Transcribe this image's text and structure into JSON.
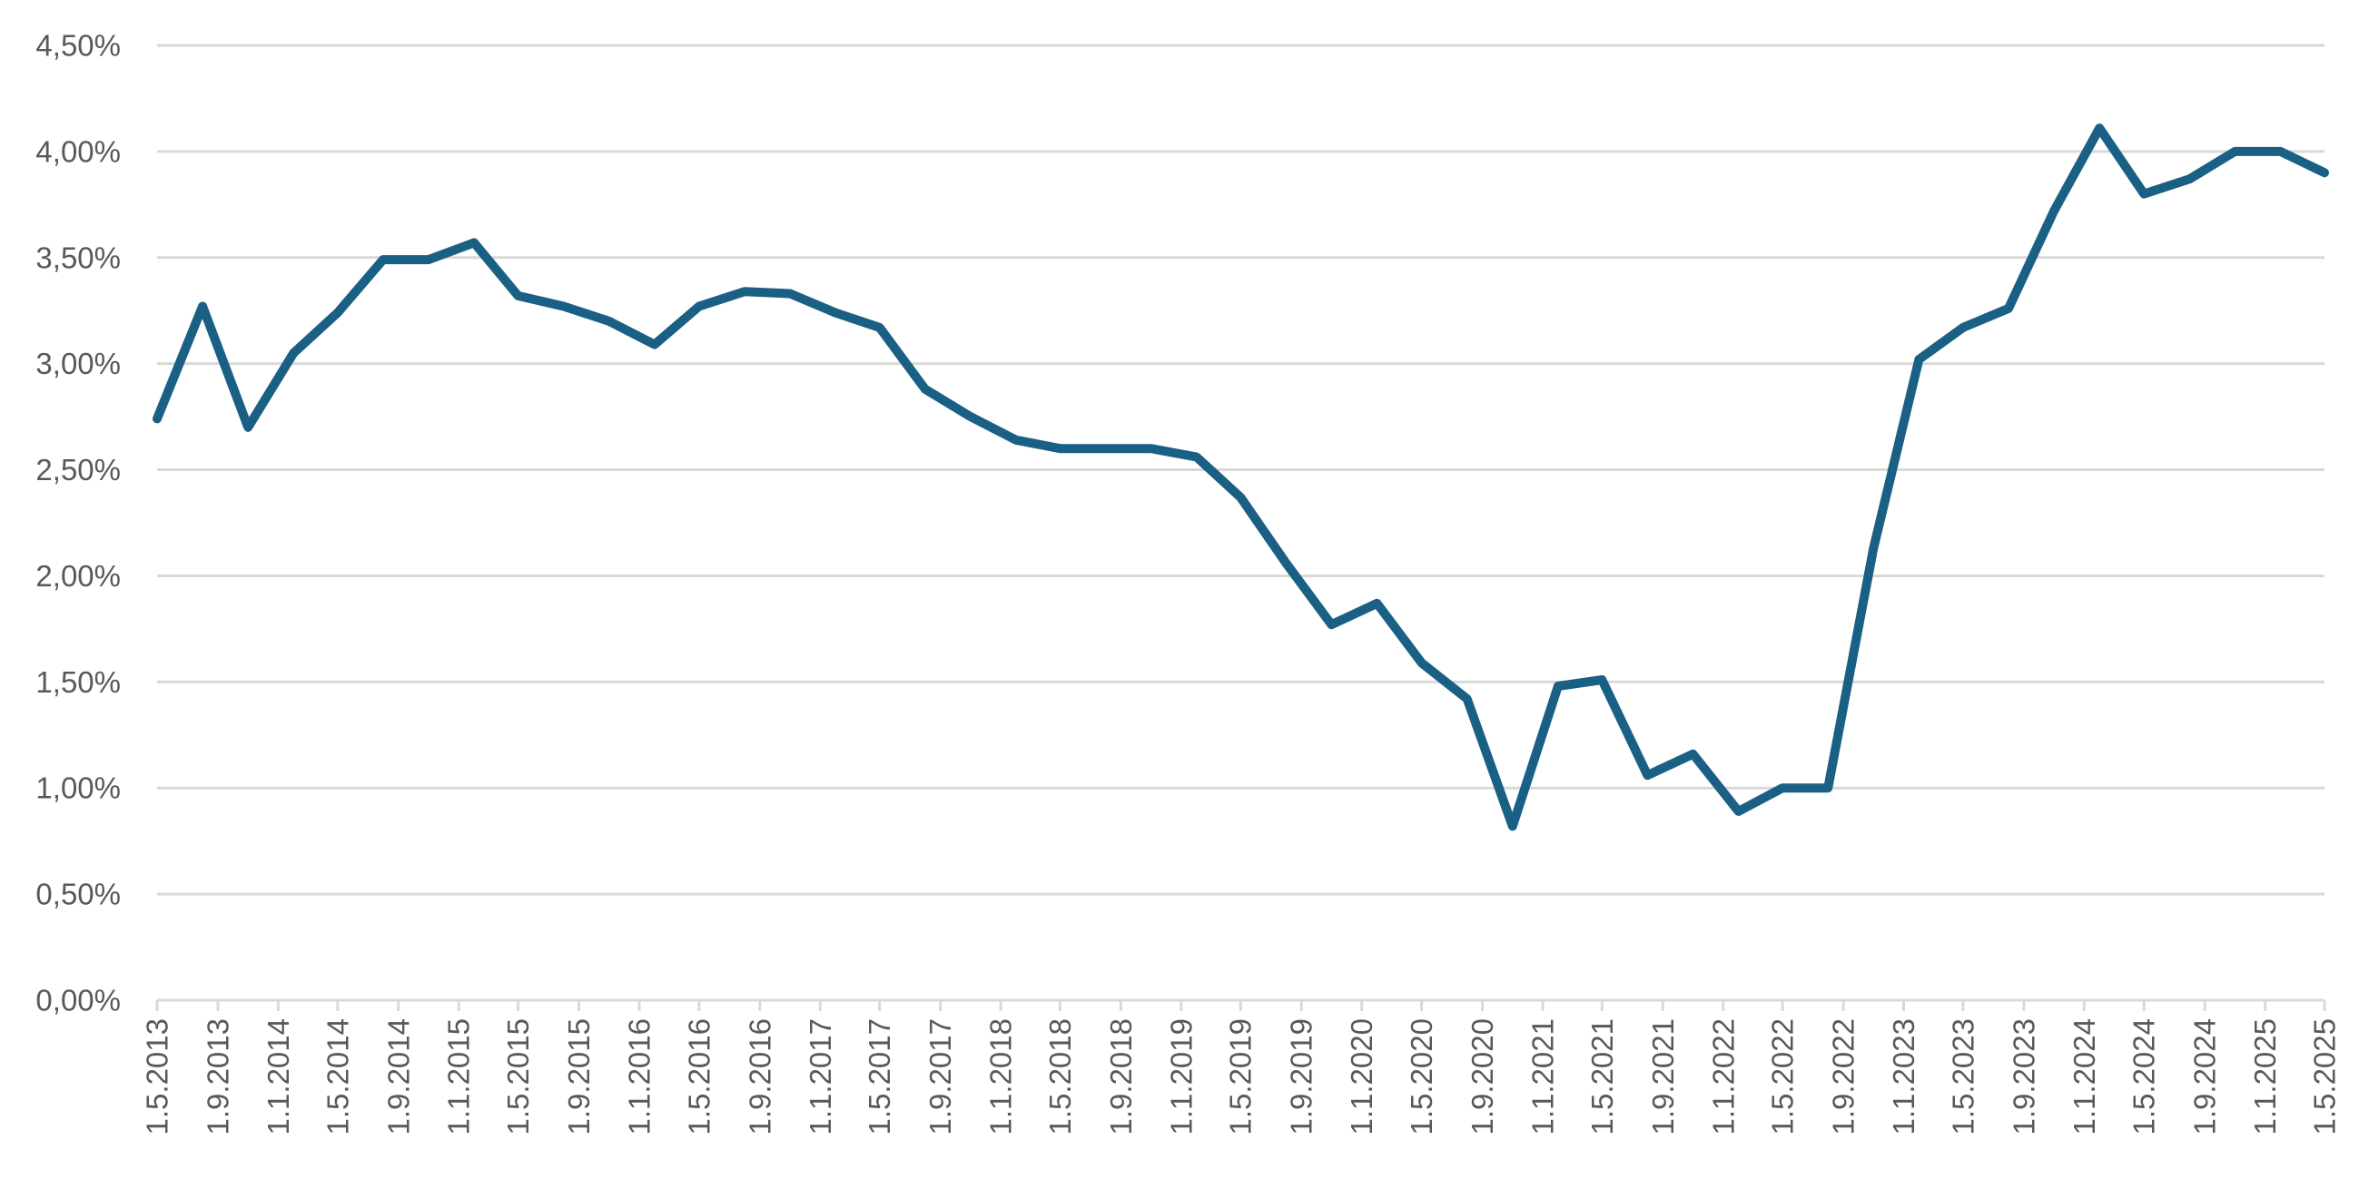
{
  "chart_data": {
    "type": "line",
    "title": "",
    "xlabel": "",
    "ylabel": "",
    "ylim": [
      0,
      4.5
    ],
    "y_ticks": [
      "0,00%",
      "0,50%",
      "1,00%",
      "1,50%",
      "2,00%",
      "2,50%",
      "3,00%",
      "3,50%",
      "4,00%",
      "4,50%"
    ],
    "x_ticks": [
      "1.5.2013",
      "1.9.2013",
      "1.1.2014",
      "1.5.2014",
      "1.9.2014",
      "1.1.2015",
      "1.5.2015",
      "1.9.2015",
      "1.1.2016",
      "1.5.2016",
      "1.9.2016",
      "1.1.2017",
      "1.5.2017",
      "1.9.2017",
      "1.1.2018",
      "1.5.2018",
      "1.9.2018",
      "1.1.2019",
      "1.5.2019",
      "1.9.2019",
      "1.1.2020",
      "1.5.2020",
      "1.9.2020",
      "1.1.2021",
      "1.5.2021",
      "1.9.2021",
      "1.1.2022",
      "1.5.2022",
      "1.9.2022",
      "1.1.2023",
      "1.5.2023",
      "1.9.2023",
      "1.1.2024",
      "1.5.2024",
      "1.9.2024",
      "1.1.2025",
      "1.5.2025"
    ],
    "grid": true,
    "legend": "none",
    "series_color": "#1a6085",
    "series": [
      {
        "x": [
          "2013-05-01",
          "2013-08-01",
          "2013-11-01",
          "2014-02-01",
          "2014-05-01",
          "2014-08-01",
          "2014-11-01",
          "2015-02-01",
          "2015-05-01",
          "2015-08-01",
          "2015-11-01",
          "2016-02-01",
          "2016-05-01",
          "2016-08-01",
          "2016-11-01",
          "2017-02-01",
          "2017-05-01",
          "2017-08-01",
          "2017-11-01",
          "2018-02-01",
          "2018-05-01",
          "2018-08-01",
          "2018-11-01",
          "2019-02-01",
          "2019-05-01",
          "2019-08-01",
          "2019-11-01",
          "2020-02-01",
          "2020-05-01",
          "2020-08-01",
          "2020-11-01",
          "2021-02-01",
          "2021-05-01",
          "2021-08-01",
          "2021-11-01",
          "2022-02-01",
          "2022-05-01",
          "2022-08-01",
          "2022-11-01",
          "2023-02-01",
          "2023-05-01",
          "2023-08-01",
          "2023-11-01",
          "2024-02-01",
          "2024-05-01",
          "2024-08-01",
          "2024-11-01",
          "2025-02-01",
          "2025-05-01"
        ],
        "values": [
          2.74,
          3.27,
          2.7,
          3.05,
          3.24,
          3.49,
          3.49,
          3.57,
          3.32,
          3.27,
          3.2,
          3.09,
          3.27,
          3.34,
          3.33,
          3.24,
          3.17,
          2.88,
          2.75,
          2.64,
          2.6,
          2.6,
          2.6,
          2.56,
          2.37,
          2.06,
          1.77,
          1.87,
          1.59,
          1.42,
          0.82,
          1.48,
          1.51,
          1.06,
          1.16,
          0.89,
          1.0,
          1.0,
          2.13,
          3.02,
          3.17,
          3.26,
          3.72,
          4.11,
          3.8,
          3.87,
          4.0,
          4.0,
          3.9
        ]
      }
    ]
  }
}
